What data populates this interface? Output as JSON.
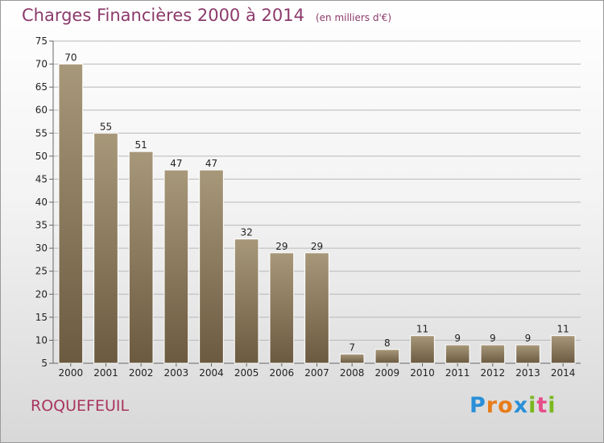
{
  "chart_data": {
    "type": "bar",
    "title": "Charges Financières 2000 à 2014",
    "subtitle": "(en milliers d'€)",
    "categories": [
      "2000",
      "2001",
      "2002",
      "2003",
      "2004",
      "2005",
      "2006",
      "2007",
      "2008",
      "2009",
      "2010",
      "2011",
      "2012",
      "2013",
      "2014"
    ],
    "values": [
      70,
      55,
      51,
      47,
      47,
      32,
      29,
      29,
      7,
      8,
      11,
      9,
      9,
      9,
      11
    ],
    "ylim": [
      5,
      75
    ],
    "yticks": [
      5,
      10,
      15,
      20,
      25,
      30,
      35,
      40,
      45,
      50,
      55,
      60,
      65,
      70,
      75
    ],
    "xlabel": "",
    "ylabel": "",
    "grid": true,
    "colors": {
      "bar_top": "#a8987a",
      "bar_bottom": "#6b5a40",
      "grid": "#b8b8b8"
    }
  },
  "commune": "ROQUEFEUIL",
  "logo": {
    "letters": [
      "P",
      "r",
      "o",
      "x",
      "i",
      "t",
      "i"
    ],
    "colors": [
      "#2a8fd8",
      "#e87c1a",
      "#e87c1a",
      "#2a8fd8",
      "#7ab81e",
      "#e84c8a",
      "#7ab81e"
    ]
  }
}
